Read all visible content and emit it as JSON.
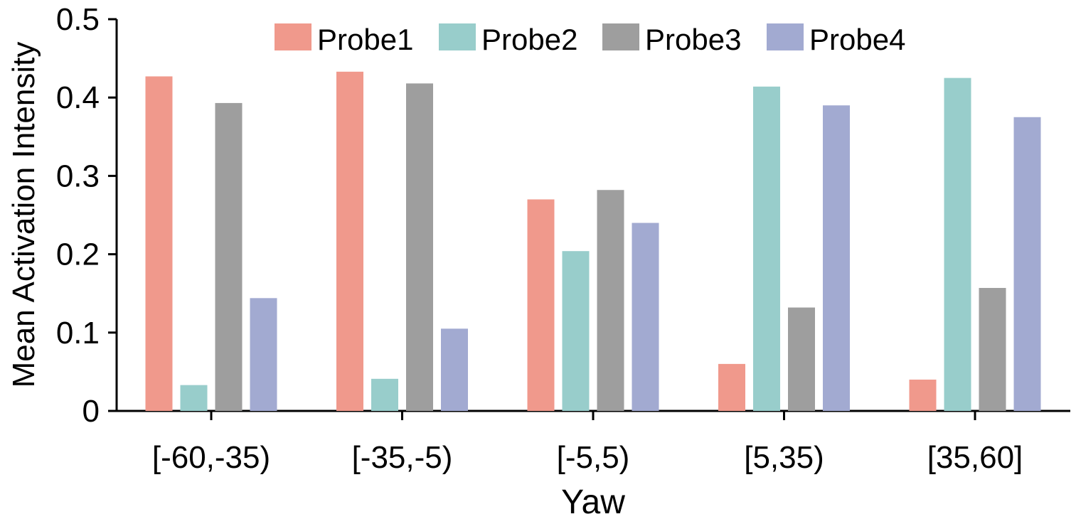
{
  "chart_data": {
    "type": "bar",
    "title": "",
    "xlabel": "Yaw",
    "ylabel": "Mean Activation Intensity",
    "ylim": [
      0,
      0.5
    ],
    "yticks": [
      "0",
      "0.1",
      "0.2",
      "0.3",
      "0.4",
      "0.5"
    ],
    "categories": [
      "[-60,-35)",
      "[-35,-5)",
      "[-5,5)",
      "[5,35)",
      "[35,60]"
    ],
    "series": [
      {
        "name": "Probe1",
        "color": "#F0998C",
        "values": [
          0.427,
          0.433,
          0.27,
          0.06,
          0.04
        ]
      },
      {
        "name": "Probe2",
        "color": "#98CDCB",
        "values": [
          0.033,
          0.041,
          0.204,
          0.414,
          0.425
        ]
      },
      {
        "name": "Probe3",
        "color": "#9E9E9E",
        "values": [
          0.393,
          0.418,
          0.282,
          0.132,
          0.157
        ]
      },
      {
        "name": "Probe4",
        "color": "#A2AAD1",
        "values": [
          0.144,
          0.105,
          0.24,
          0.39,
          0.375
        ]
      }
    ],
    "legend_position": "top-center",
    "grid": false
  }
}
